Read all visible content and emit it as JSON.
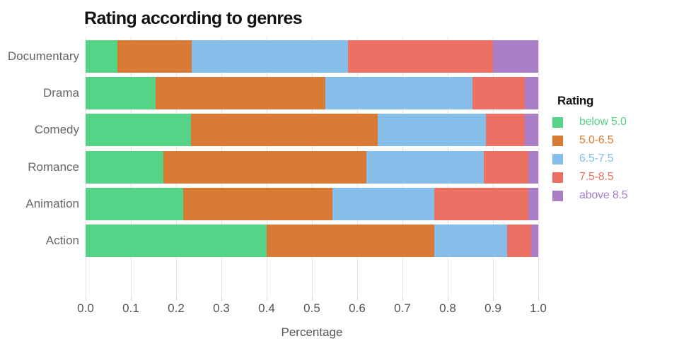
{
  "chart_data": {
    "type": "bar",
    "orientation": "horizontal",
    "stacked": true,
    "title": "Rating according to genres",
    "xlabel": "Percentage",
    "legend_title": "Rating",
    "legend_position": "right",
    "grid": true,
    "xlim": [
      0.0,
      1.0
    ],
    "xticks": [
      "0.0",
      "0.1",
      "0.2",
      "0.3",
      "0.4",
      "0.5",
      "0.6",
      "0.7",
      "0.8",
      "0.9",
      "1.0"
    ],
    "categories": [
      "Documentary",
      "Drama",
      "Comedy",
      "Romance",
      "Animation",
      "Action"
    ],
    "series": [
      {
        "name": "below 5.0",
        "color": "#55D488",
        "values": [
          0.07,
          0.155,
          0.233,
          0.172,
          0.215,
          0.4
        ]
      },
      {
        "name": "5.0-6.5",
        "color": "#D97A34",
        "values": [
          0.165,
          0.375,
          0.412,
          0.448,
          0.33,
          0.37
        ]
      },
      {
        "name": "6.5-7.5",
        "color": "#85BFE9",
        "values": [
          0.345,
          0.325,
          0.24,
          0.26,
          0.225,
          0.162
        ]
      },
      {
        "name": "7.5-8.5",
        "color": "#EC7164",
        "values": [
          0.32,
          0.115,
          0.085,
          0.098,
          0.208,
          0.053
        ]
      },
      {
        "name": "above 8.5",
        "color": "#AA7DC7",
        "values": [
          0.1,
          0.03,
          0.03,
          0.022,
          0.022,
          0.015
        ]
      }
    ]
  },
  "style_colors": {
    "gridline": "#F8DBDD",
    "tick_mark": "#F0C4C8",
    "axis_text": "#555555",
    "category_text": "#666666",
    "title_text": "#111111"
  }
}
